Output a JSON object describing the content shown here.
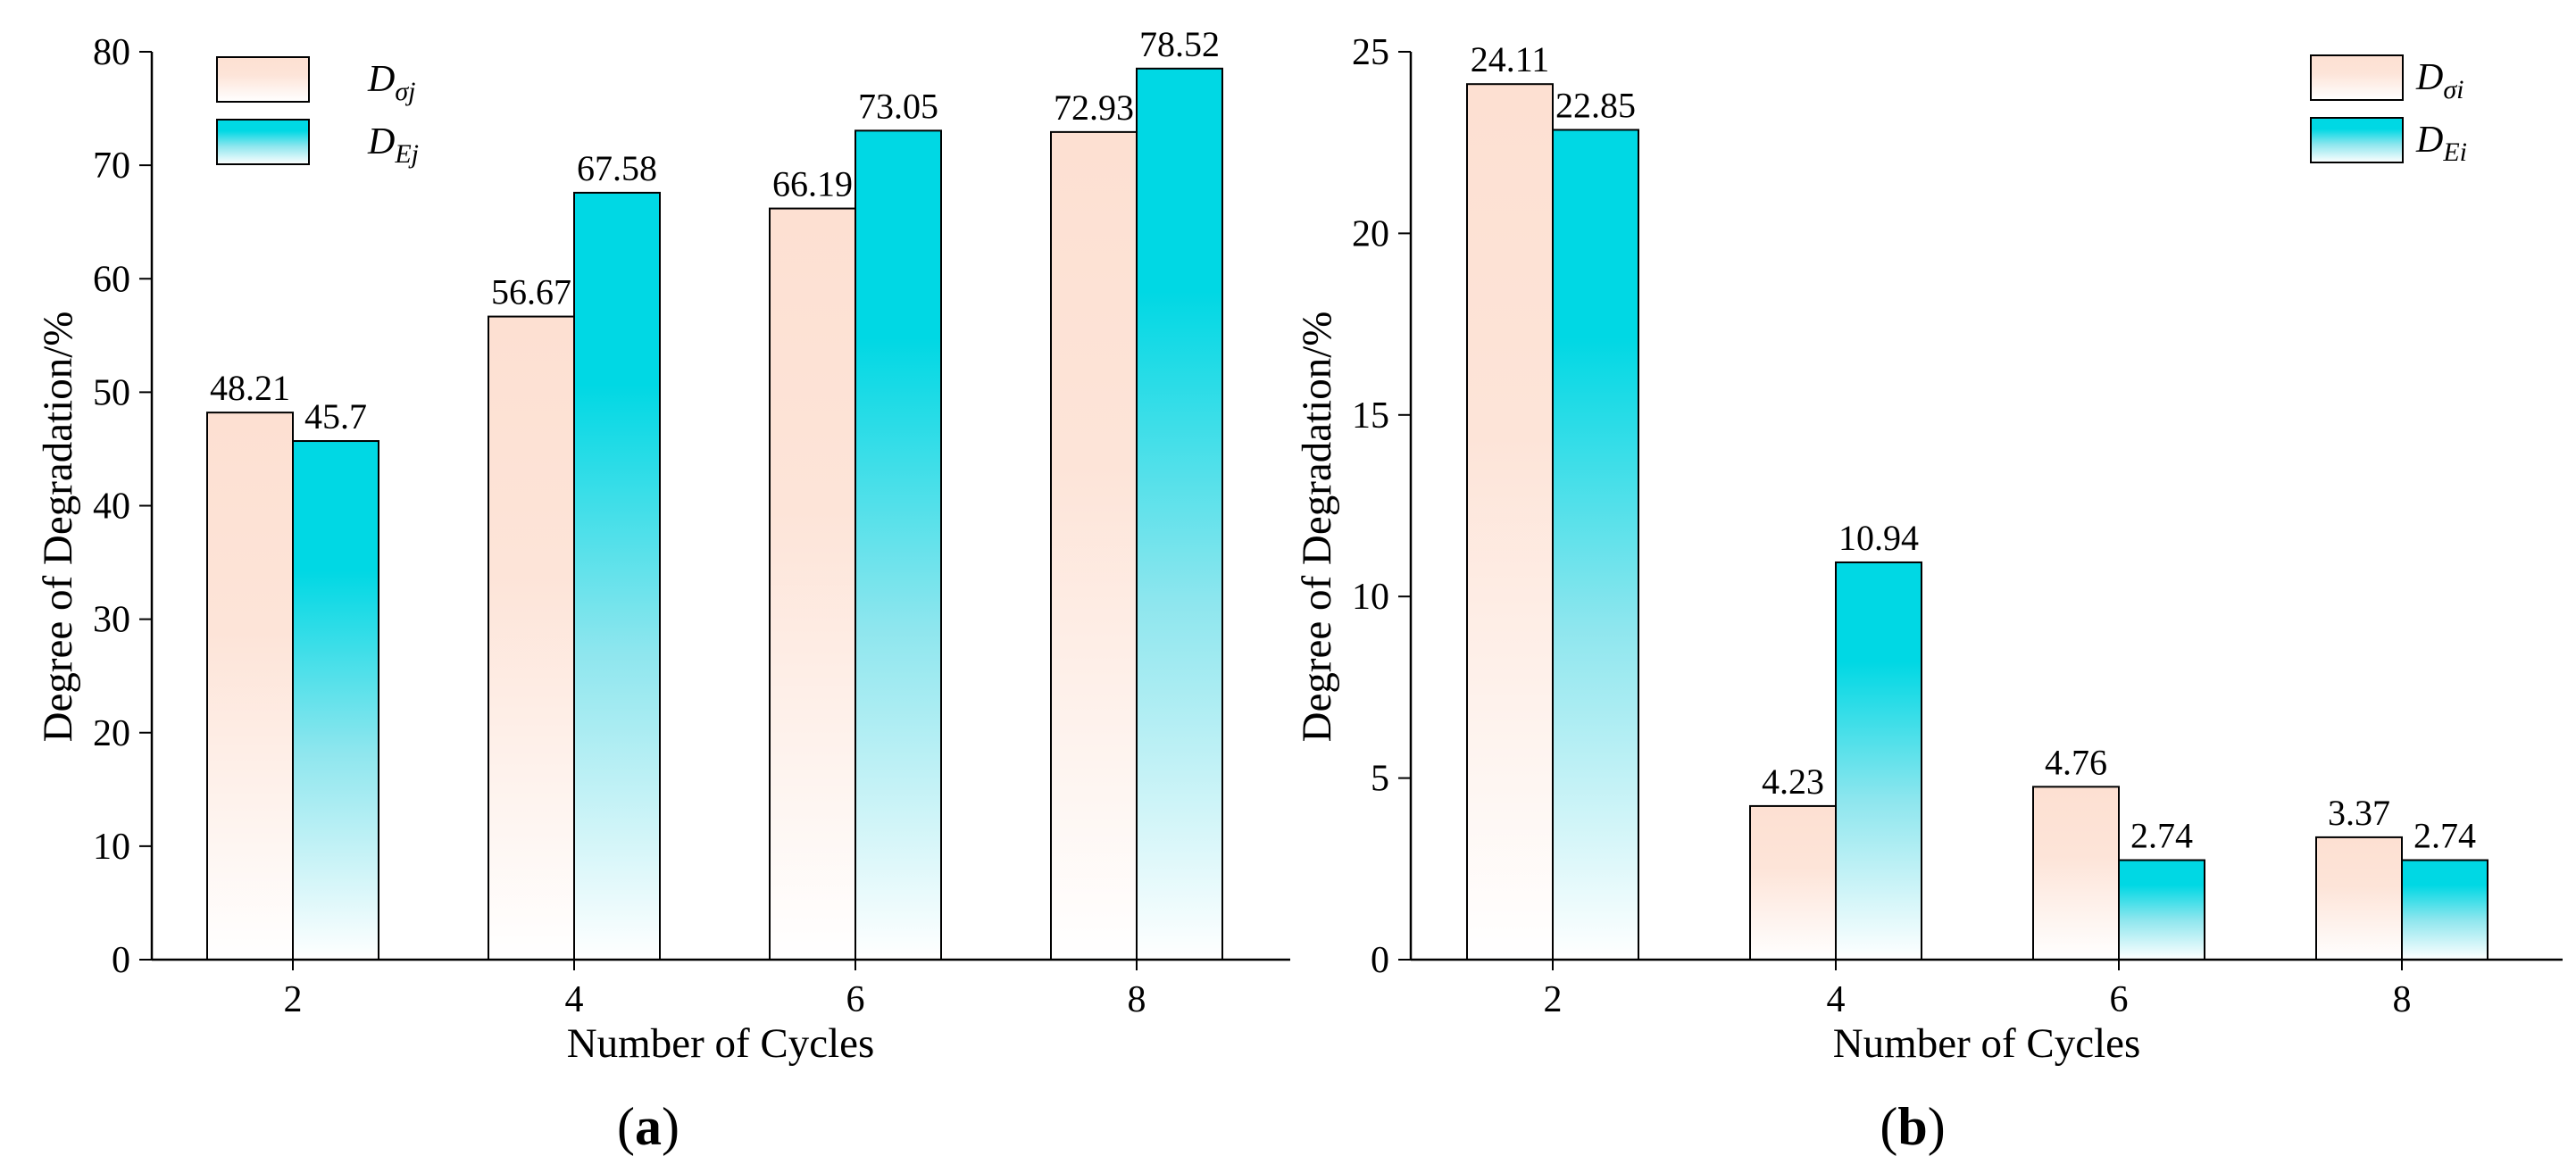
{
  "chart_data": [
    {
      "type": "bar",
      "panel_label": {
        "open": "(",
        "letter": "a",
        "close": ")"
      },
      "categories": [
        "2",
        "4",
        "6",
        "8"
      ],
      "series": [
        {
          "name": "D_σj",
          "legend_base": "D",
          "legend_sub": "σj",
          "values": [
            48.21,
            56.67,
            66.19,
            72.93
          ],
          "value_labels": [
            "48.21",
            "56.67",
            "66.19",
            "72.93"
          ],
          "style": "peach"
        },
        {
          "name": "D_Ej",
          "legend_base": "D",
          "legend_sub": "Ej",
          "values": [
            45.7,
            67.58,
            73.05,
            78.52
          ],
          "value_labels": [
            "45.7",
            "67.58",
            "73.05",
            "78.52"
          ],
          "style": "cyan"
        }
      ],
      "xlabel": "Number of Cycles",
      "ylabel": "Degree of Degradation/%",
      "ylim": [
        0,
        80
      ],
      "yticks": [
        0,
        10,
        20,
        30,
        40,
        50,
        60,
        70,
        80
      ],
      "ytick_labels": [
        "0",
        "10",
        "20",
        "30",
        "40",
        "50",
        "60",
        "70",
        "80"
      ],
      "legend_position": "top-left",
      "grid": false
    },
    {
      "type": "bar",
      "panel_label": {
        "open": "(",
        "letter": "b",
        "close": ")"
      },
      "categories": [
        "2",
        "4",
        "6",
        "8"
      ],
      "series": [
        {
          "name": "D_σi",
          "legend_base": "D",
          "legend_sub": "σi",
          "values": [
            24.11,
            4.23,
            4.76,
            3.37
          ],
          "value_labels": [
            "24.11",
            "4.23",
            "4.76",
            "3.37"
          ],
          "style": "peach"
        },
        {
          "name": "D_Ei",
          "legend_base": "D",
          "legend_sub": "Ei",
          "values": [
            22.85,
            10.94,
            2.74,
            2.74
          ],
          "value_labels": [
            "22.85",
            "10.94",
            "2.74",
            "2.74"
          ],
          "style": "cyan"
        }
      ],
      "xlabel": "Number of Cycles",
      "ylabel": "Degree of Degradation/%",
      "ylim": [
        0,
        25
      ],
      "yticks": [
        0,
        5,
        10,
        15,
        20,
        25
      ],
      "ytick_labels": [
        "0",
        "5",
        "10",
        "15",
        "20",
        "25"
      ],
      "legend_position": "top-right",
      "grid": false
    }
  ],
  "colors": {
    "peach_top": "#fde0d2",
    "peach_bottom": "#ffffff",
    "cyan_top": "#00d8e4",
    "cyan_bottom": "#ffffff",
    "stroke": "#000000"
  }
}
